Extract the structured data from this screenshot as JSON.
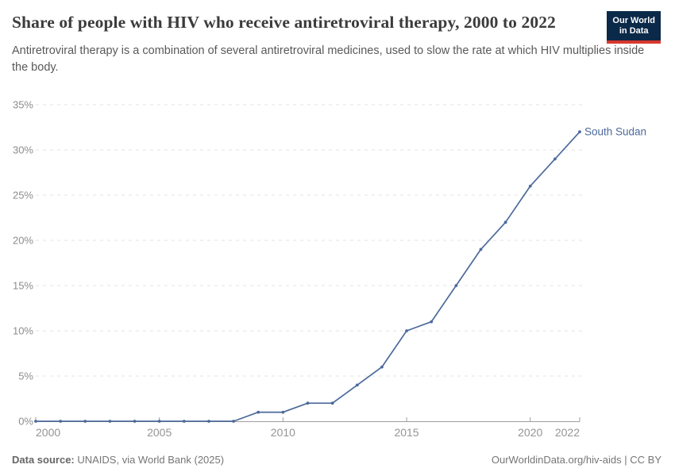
{
  "header": {
    "title": "Share of people with HIV who receive antiretroviral therapy, 2000 to 2022",
    "subtitle": "Antiretroviral therapy is a combination of several antiretroviral medicines, used to slow the rate at which HIV multiplies inside the body.",
    "logo": {
      "line1": "Our World",
      "line2": "in Data"
    }
  },
  "chart_data": {
    "type": "line",
    "title": "Share of people with HIV who receive antiretroviral therapy, 2000 to 2022",
    "entity_label": "South Sudan",
    "x": [
      2000,
      2001,
      2002,
      2003,
      2004,
      2005,
      2006,
      2007,
      2008,
      2009,
      2010,
      2011,
      2012,
      2013,
      2014,
      2015,
      2016,
      2017,
      2018,
      2019,
      2020,
      2021,
      2022
    ],
    "series": [
      {
        "name": "South Sudan",
        "color": "#4c6a9c",
        "values": [
          0,
          0,
          0,
          0,
          0,
          0,
          0,
          0,
          0,
          1,
          1,
          2,
          2,
          4,
          6,
          10,
          11,
          15,
          19,
          22,
          26,
          29,
          32
        ]
      }
    ],
    "x_ticks": [
      2000,
      2005,
      2010,
      2015,
      2020,
      2022
    ],
    "y_ticks": [
      0,
      5,
      10,
      15,
      20,
      25,
      30,
      35
    ],
    "y_tick_suffix": "%",
    "xlim": [
      2000,
      2022
    ],
    "ylim": [
      0,
      35
    ],
    "grid": "horizontal-dashed",
    "legend": "inline-entity-label",
    "styles": {
      "grid_color": "#e3e3e3",
      "axis_color": "#9e9e9e",
      "y_tick_label_color": "#8c8c8c",
      "x_tick_label_color": "#949494"
    }
  },
  "footer": {
    "source_label": "Data source:",
    "source_text": " UNAIDS, via World Bank (2025)",
    "link_text": "OurWorldinData.org/hiv-aids | CC BY"
  }
}
